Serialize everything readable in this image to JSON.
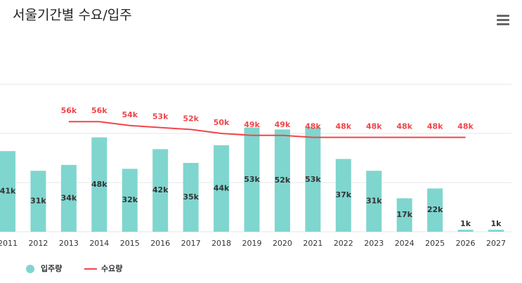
{
  "chart_data": {
    "type": "bar_line",
    "title": "서울기간별 수요/입주",
    "categories": [
      "2011",
      "2012",
      "2013",
      "2014",
      "2015",
      "2016",
      "2017",
      "2018",
      "2019",
      "2020",
      "2021",
      "2022",
      "2023",
      "2024",
      "2025",
      "2026",
      "2027"
    ],
    "series": [
      {
        "name": "입주량",
        "type": "bar",
        "color": "#7fd6cf",
        "values": [
          41,
          31,
          34,
          48,
          32,
          42,
          35,
          44,
          53,
          52,
          53,
          37,
          31,
          17,
          22,
          1,
          1
        ],
        "value_labels": [
          "41k",
          "31k",
          "34k",
          "48k",
          "32k",
          "42k",
          "35k",
          "44k",
          "53k",
          "52k",
          "53k",
          "37k",
          "31k",
          "17k",
          "22k",
          "1k",
          "1k"
        ]
      },
      {
        "name": "수요량",
        "type": "line",
        "color": "#f0454a",
        "values": [
          null,
          null,
          56,
          56,
          54,
          53,
          52,
          50,
          49,
          49,
          48,
          48,
          48,
          48,
          48,
          48,
          null
        ],
        "value_labels": [
          null,
          null,
          "56k",
          "56k",
          "54k",
          "53k",
          "52k",
          "50k",
          "49k",
          "49k",
          "48k",
          "48k",
          "48k",
          "48k",
          "48k",
          "48k",
          null
        ]
      }
    ],
    "ylim": [
      0,
      75
    ],
    "yticks": [
      0,
      25,
      50,
      75
    ],
    "grid": true,
    "legend": "bottom-left"
  }
}
